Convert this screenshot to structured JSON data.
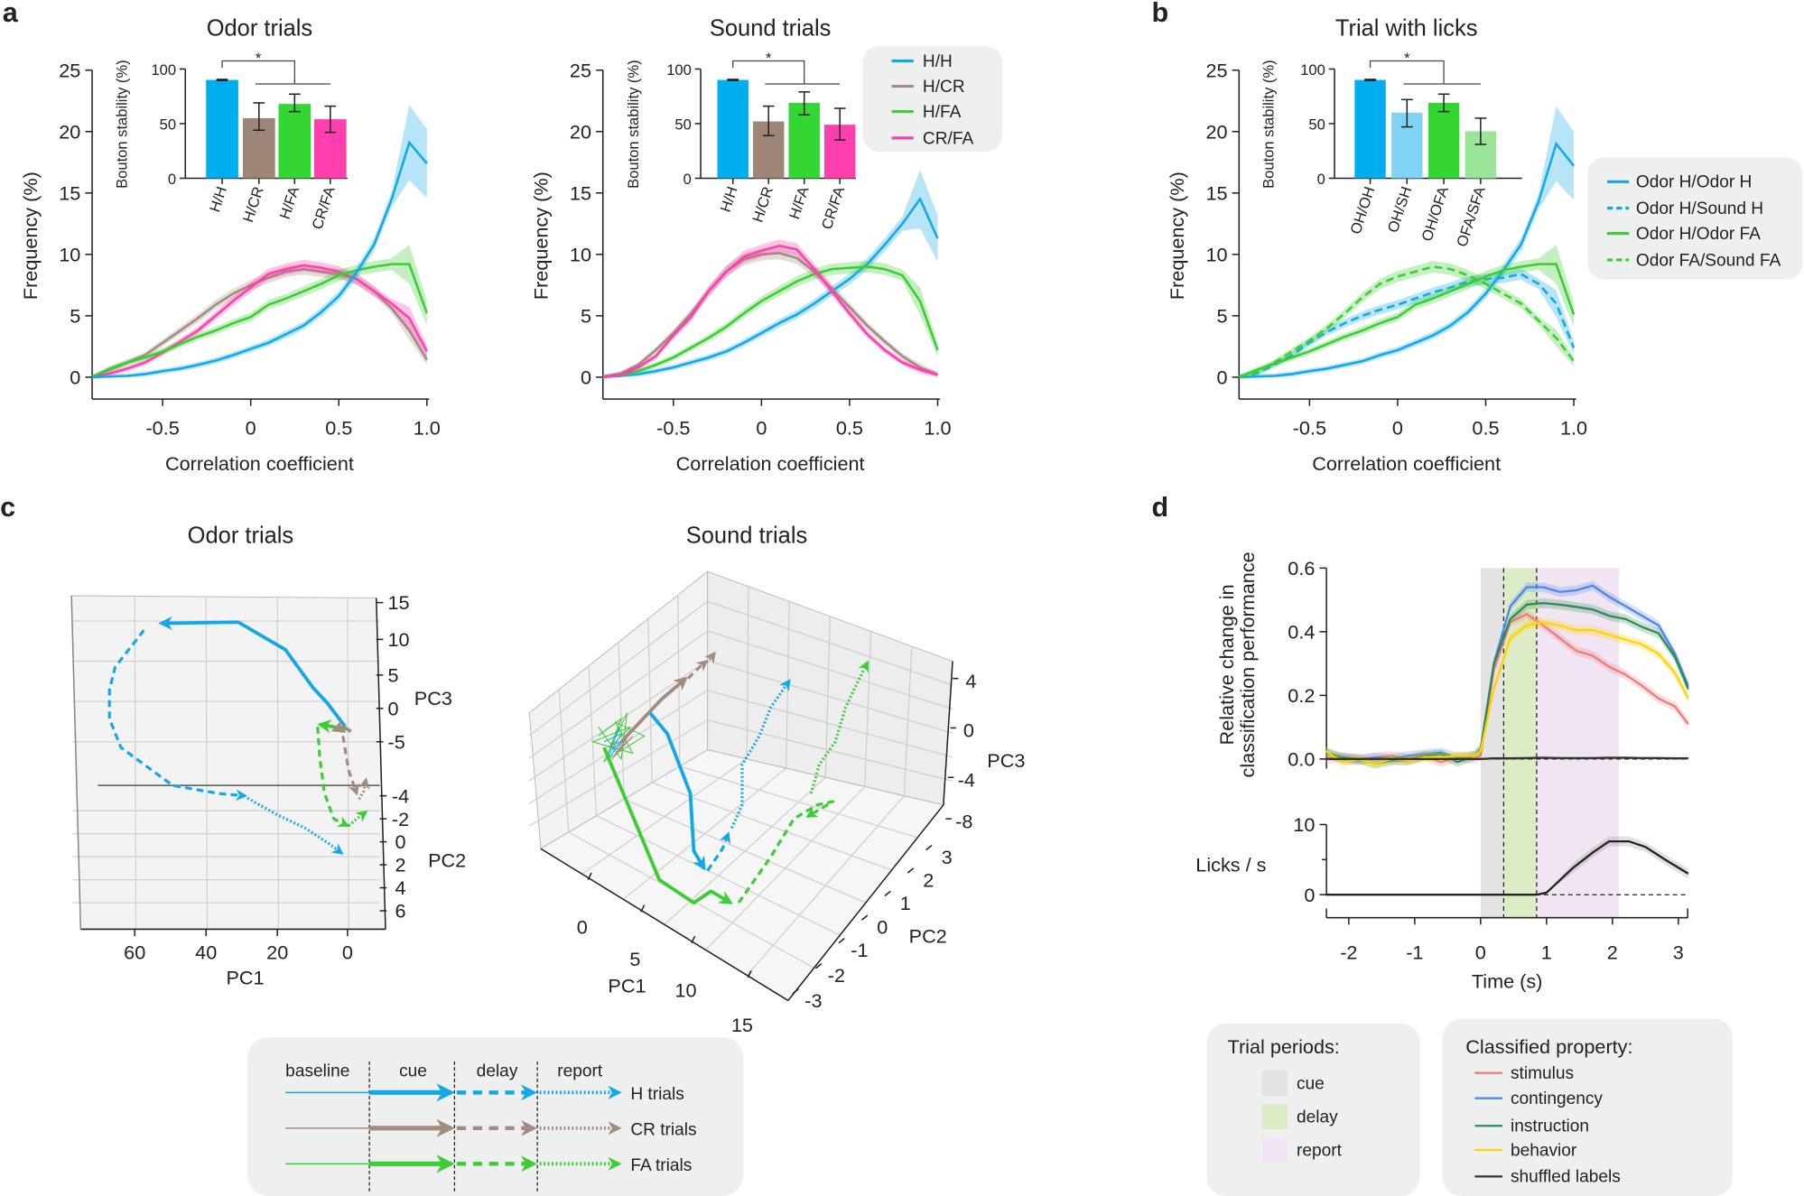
{
  "figure": {
    "panel_labels": [
      "a",
      "b",
      "c",
      "d"
    ]
  },
  "chart_data": [
    {
      "panel": "a",
      "type": "line",
      "title": "Odor trials",
      "xlabel": "Correlation coefficient",
      "ylabel": "Frequency (%)",
      "xlim": [
        -0.9,
        1.0
      ],
      "ylim": [
        -1.8,
        25
      ],
      "xticks": [
        "-0.5",
        "0",
        "0.5",
        "1.0"
      ],
      "yticks": [
        "0",
        "5",
        "10",
        "15",
        "20",
        "25"
      ],
      "x": [
        -0.9,
        -0.8,
        -0.7,
        -0.6,
        -0.5,
        -0.4,
        -0.3,
        -0.2,
        -0.1,
        0,
        0.1,
        0.2,
        0.3,
        0.4,
        0.5,
        0.6,
        0.7,
        0.8,
        0.9,
        1.0
      ],
      "series": [
        {
          "name": "H/CR",
          "color": "#a28c7e",
          "style": "solid",
          "values": [
            0,
            0.6,
            1.2,
            1.8,
            2.8,
            3.8,
            4.8,
            5.9,
            6.8,
            7.5,
            8.1,
            8.6,
            8.8,
            8.6,
            8.4,
            8.0,
            7.0,
            5.6,
            3.8,
            1.4
          ]
        },
        {
          "name": "CR/FA",
          "color": "#ff3fae",
          "style": "solid",
          "values": [
            0,
            0.3,
            0.7,
            1.2,
            2.0,
            2.9,
            3.8,
            5.0,
            6.2,
            7.3,
            8.4,
            8.8,
            9.1,
            8.9,
            8.6,
            8.0,
            7.0,
            6.0,
            4.8,
            2.1
          ]
        },
        {
          "name": "H/FA",
          "color": "#3ccc33",
          "style": "solid",
          "values": [
            0,
            0.7,
            1.2,
            1.6,
            2.1,
            2.7,
            3.3,
            3.8,
            4.4,
            4.9,
            5.9,
            6.4,
            7.0,
            7.6,
            8.3,
            8.7,
            9.0,
            9.2,
            9.2,
            5.2
          ]
        },
        {
          "name": "H/H",
          "color": "#12a8e8",
          "style": "solid",
          "values": [
            0,
            0.05,
            0.1,
            0.25,
            0.5,
            0.7,
            1.0,
            1.35,
            1.8,
            2.3,
            2.8,
            3.5,
            4.2,
            5.3,
            6.6,
            8.5,
            10.8,
            14.5,
            19.1,
            17.4
          ]
        }
      ],
      "inset": {
        "type": "bar",
        "ylabel": "Bouton stability (%)",
        "ylim": [
          0,
          100
        ],
        "yticks": [
          "0",
          "50",
          "100"
        ],
        "categories": [
          "H/H",
          "H/CR",
          "H/FA",
          "CR/FA"
        ],
        "values": [
          90,
          55,
          68,
          54
        ],
        "error_low": [
          89.5,
          44,
          61,
          42
        ],
        "error_high": [
          90.5,
          69,
          77,
          66
        ],
        "colors": [
          "#00aeef",
          "#9d8677",
          "#33d633",
          "#ff3fae"
        ],
        "significance": "*"
      }
    },
    {
      "panel": "a",
      "type": "line",
      "title": "Sound trials",
      "xlabel": "Correlation coefficient",
      "ylabel": "Frequency (%)",
      "xlim": [
        -0.9,
        1.0
      ],
      "ylim": [
        -1.8,
        25
      ],
      "xticks": [
        "-0.5",
        "0",
        "0.5",
        "1.0"
      ],
      "yticks": [
        "0",
        "5",
        "10",
        "15",
        "20",
        "25"
      ],
      "x": [
        -0.9,
        -0.8,
        -0.7,
        -0.6,
        -0.5,
        -0.4,
        -0.3,
        -0.2,
        -0.1,
        0,
        0.1,
        0.2,
        0.3,
        0.4,
        0.5,
        0.6,
        0.7,
        0.8,
        0.9,
        1.0
      ],
      "series": [
        {
          "name": "H/H",
          "color": "#12a8e8",
          "style": "solid",
          "values": [
            0,
            0.1,
            0.25,
            0.5,
            0.8,
            1.2,
            1.6,
            2.1,
            2.8,
            3.6,
            4.4,
            5.1,
            6.0,
            7.0,
            8.0,
            9.2,
            10.8,
            12.5,
            14.5,
            11.3
          ]
        },
        {
          "name": "H/CR",
          "color": "#a28c7e",
          "style": "solid",
          "values": [
            0,
            0.3,
            1.0,
            2.2,
            3.6,
            5.2,
            7.0,
            8.6,
            9.6,
            10.0,
            10.1,
            9.7,
            8.6,
            7.2,
            5.7,
            4.2,
            2.9,
            1.7,
            0.8,
            0.2
          ]
        },
        {
          "name": "H/FA",
          "color": "#3ccc33",
          "style": "solid",
          "values": [
            0,
            0.2,
            0.5,
            1.0,
            1.6,
            2.4,
            3.2,
            4.1,
            5.2,
            6.2,
            7.0,
            7.8,
            8.4,
            8.8,
            8.9,
            9.0,
            8.8,
            8.3,
            6.2,
            2.2
          ]
        },
        {
          "name": "CR/FA",
          "color": "#ff3fae",
          "style": "solid",
          "values": [
            0,
            0.2,
            0.8,
            1.7,
            3.4,
            4.9,
            7.0,
            8.6,
            9.8,
            10.3,
            10.7,
            10.4,
            8.8,
            7.0,
            5.2,
            3.5,
            2.2,
            1.2,
            0.6,
            0.2
          ]
        }
      ],
      "legend": [
        "H/H",
        "H/CR",
        "H/FA",
        "CR/FA"
      ],
      "inset": {
        "type": "bar",
        "ylabel": "Bouton stability (%)",
        "ylim": [
          0,
          100
        ],
        "yticks": [
          "0",
          "50",
          "100"
        ],
        "categories": [
          "H/H",
          "H/CR",
          "H/FA",
          "CR/FA"
        ],
        "values": [
          90,
          52,
          69,
          49
        ],
        "error_low": [
          89.5,
          39,
          58,
          35
        ],
        "error_high": [
          90.5,
          66,
          79,
          64
        ],
        "colors": [
          "#00aeef",
          "#9d8677",
          "#33d633",
          "#ff3fae"
        ],
        "significance": "*"
      }
    },
    {
      "panel": "b",
      "type": "line",
      "title": "Trial with licks",
      "xlabel": "Correlation coefficient",
      "ylabel": "Frequency (%)",
      "xlim": [
        -0.9,
        1.0
      ],
      "ylim": [
        -1.8,
        25
      ],
      "xticks": [
        "-0.5",
        "0",
        "0.5",
        "1.0"
      ],
      "yticks": [
        "0",
        "5",
        "10",
        "15",
        "20",
        "25"
      ],
      "x": [
        -0.9,
        -0.8,
        -0.7,
        -0.6,
        -0.5,
        -0.4,
        -0.3,
        -0.2,
        -0.1,
        0,
        0.1,
        0.2,
        0.3,
        0.4,
        0.5,
        0.6,
        0.7,
        0.8,
        0.9,
        1.0
      ],
      "series": [
        {
          "name": "Odor H/Odor H",
          "color": "#12a8e8",
          "style": "solid",
          "values": [
            0,
            0.05,
            0.1,
            0.25,
            0.5,
            0.7,
            1.0,
            1.3,
            1.8,
            2.2,
            2.8,
            3.4,
            4.2,
            5.3,
            6.8,
            8.7,
            10.8,
            14.3,
            19.0,
            17.2
          ]
        },
        {
          "name": "Odor H/Sound H",
          "color": "#12a8e8",
          "style": "dashed",
          "values": [
            0,
            0.3,
            1.0,
            1.8,
            2.8,
            3.7,
            4.4,
            5.0,
            5.5,
            5.9,
            6.4,
            6.9,
            7.3,
            7.8,
            8.0,
            8.1,
            8.4,
            7.6,
            6.0,
            2.4
          ]
        },
        {
          "name": "Odor H/Odor FA",
          "color": "#3ccc33",
          "style": "solid",
          "values": [
            0,
            0.6,
            1.1,
            1.6,
            2.1,
            2.7,
            3.3,
            3.8,
            4.4,
            4.9,
            5.9,
            6.4,
            7.0,
            7.6,
            8.2,
            8.7,
            9.0,
            9.2,
            9.2,
            5.1
          ]
        },
        {
          "name": "Odor FA/Sound FA",
          "color": "#3ccc33",
          "style": "dashed",
          "values": [
            0,
            0.4,
            1.2,
            2.1,
            3.0,
            4.0,
            5.2,
            6.5,
            7.6,
            8.2,
            8.6,
            9.0,
            8.8,
            8.3,
            7.6,
            6.8,
            6.0,
            4.6,
            3.2,
            1.3
          ]
        }
      ],
      "legend": [
        "Odor H/Odor H",
        "Odor H/Sound H",
        "Odor H/Odor FA",
        "Odor FA/Sound FA"
      ],
      "inset": {
        "type": "bar",
        "ylabel": "Bouton stability (%)",
        "ylim": [
          0,
          100
        ],
        "yticks": [
          "0",
          "50",
          "100"
        ],
        "categories": [
          "OH/OH",
          "OH/SH",
          "OH/OFA",
          "OFA/SFA"
        ],
        "values": [
          90,
          60,
          69,
          43
        ],
        "error_low": [
          89.5,
          47,
          61,
          31
        ],
        "error_high": [
          90.5,
          72,
          77,
          55
        ],
        "colors": [
          "#00aeef",
          "#7fd3f5",
          "#33d633",
          "#99e699"
        ],
        "significance": "*"
      }
    },
    {
      "panel": "c",
      "type": "line3d",
      "title": "Odor trials",
      "xlabel": "PC1",
      "ylabel": "PC2",
      "zlabel": "PC3",
      "xticks": [
        "60",
        "40",
        "20",
        "0"
      ],
      "yticks": [
        "-4",
        "-2",
        "0",
        "2",
        "4",
        "6"
      ],
      "zticks": [
        "15",
        "10",
        "5",
        "0",
        "-5"
      ]
    },
    {
      "panel": "c",
      "type": "line3d",
      "title": "Sound trials",
      "xlabel": "PC1",
      "ylabel": "PC2",
      "zlabel": "PC3",
      "xticks": [
        "0",
        "5",
        "10",
        "15"
      ],
      "yticks": [
        "3",
        "2",
        "1",
        "0",
        "-1",
        "-2",
        "-3"
      ],
      "zticks": [
        "4",
        "0",
        "-4",
        "-8"
      ]
    },
    {
      "panel": "d",
      "type": "line",
      "xlabel": "Time (s)",
      "ylabel_lines": [
        "Relative change in",
        "classification performance"
      ],
      "xlim": [
        -2.4,
        3.15
      ],
      "ylim": [
        -0.03,
        0.6
      ],
      "xticks": [
        "-2",
        "-1",
        "0",
        "1",
        "2",
        "3"
      ],
      "yticks": [
        "0.0",
        "0.2",
        "0.4",
        "0.6"
      ],
      "x": [
        -2.35,
        -2.1,
        -1.85,
        -1.6,
        -1.35,
        -1.1,
        -0.85,
        -0.6,
        -0.35,
        -0.1,
        0.0,
        0.2,
        0.45,
        0.7,
        0.95,
        1.2,
        1.45,
        1.7,
        1.95,
        2.2,
        2.45,
        2.7,
        2.95,
        3.15
      ],
      "series": [
        {
          "name": "stimulus",
          "color": "#f07a7a",
          "values": [
            0,
            0.005,
            0,
            0.005,
            0.01,
            0,
            0.01,
            -0.01,
            0.005,
            0,
            0.01,
            0.28,
            0.43,
            0.455,
            0.42,
            0.38,
            0.34,
            0.325,
            0.29,
            0.265,
            0.23,
            0.19,
            0.165,
            0.11
          ]
        },
        {
          "name": "contingency",
          "color": "#4f86ea",
          "values": [
            0.02,
            0,
            -0.005,
            0.005,
            0,
            0.01,
            0.015,
            0.02,
            0.005,
            0.01,
            0.03,
            0.3,
            0.48,
            0.54,
            0.54,
            0.525,
            0.53,
            0.545,
            0.51,
            0.48,
            0.45,
            0.42,
            0.33,
            0.23
          ]
        },
        {
          "name": "instruction",
          "color": "#2e8b57",
          "values": [
            0.02,
            0.005,
            0,
            -0.015,
            -0.005,
            -0.005,
            0.01,
            0.015,
            -0.01,
            0.01,
            0.03,
            0.3,
            0.44,
            0.485,
            0.49,
            0.485,
            0.478,
            0.47,
            0.45,
            0.44,
            0.415,
            0.395,
            0.32,
            0.22
          ]
        },
        {
          "name": "behavior",
          "color": "#ffd400",
          "values": [
            0.025,
            -0.01,
            0,
            -0.015,
            0,
            -0.005,
            0.005,
            0.005,
            0.01,
            0.01,
            0.025,
            0.22,
            0.38,
            0.42,
            0.43,
            0.42,
            0.405,
            0.405,
            0.39,
            0.375,
            0.36,
            0.33,
            0.27,
            0.19
          ]
        },
        {
          "name": "shuffled labels",
          "color": "#333333",
          "values": [
            0,
            0,
            0,
            0,
            0,
            0,
            0,
            0,
            0,
            0,
            0,
            0.002,
            0.002,
            0.003,
            0.004,
            0.003,
            0.003,
            0.003,
            0.004,
            0.004,
            0.003,
            0.003,
            0.002,
            0.002
          ]
        }
      ],
      "licks": {
        "ylabel": "Licks / s",
        "ylim": [
          0,
          10
        ],
        "yticks": [
          "0",
          "10"
        ],
        "x": [
          -2.35,
          0.85,
          1.0,
          1.4,
          1.7,
          1.95,
          2.25,
          2.5,
          2.8,
          3.15
        ],
        "values": [
          0,
          0,
          0.3,
          3.8,
          6.0,
          7.6,
          7.6,
          6.8,
          5.0,
          3.0
        ]
      },
      "periods": [
        {
          "name": "cue",
          "start": 0,
          "end": 0.35,
          "color": "#e3e3e3"
        },
        {
          "name": "delay",
          "start": 0.35,
          "end": 0.85,
          "color": "#dcecc6"
        },
        {
          "name": "report",
          "start": 0.85,
          "end": 2.1,
          "color": "#f1e5f3"
        }
      ],
      "legend_periods_title": "Trial periods:",
      "legend_series_title": "Classified property:"
    }
  ],
  "trajectory_legend": {
    "periods": [
      "baseline",
      "cue",
      "delay",
      "report"
    ],
    "trial_types": [
      {
        "label": "H trials",
        "color": "#12a8e8"
      },
      {
        "label": "CR trials",
        "color": "#a28c7e"
      },
      {
        "label": "FA trials",
        "color": "#3ccc33"
      }
    ]
  }
}
